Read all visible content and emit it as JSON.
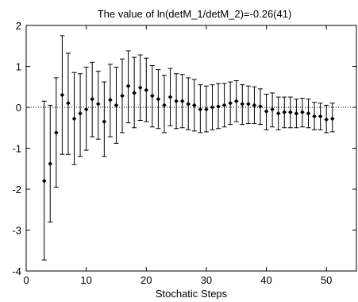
{
  "chart_data": {
    "type": "scatter",
    "title": "The value of ln(detM_1/detM_2)=-0.26(41)",
    "xlabel": "Stochatic Steps",
    "ylabel": "",
    "xlim": [
      0,
      55
    ],
    "ylim": [
      -4,
      2
    ],
    "xticks": [
      0,
      10,
      20,
      30,
      40,
      50
    ],
    "yticks": [
      -4,
      -3,
      -2,
      -1,
      0,
      1,
      2
    ],
    "reference_line": {
      "y": 0,
      "style": "dotted"
    },
    "grid": false,
    "series": [
      {
        "marker": "diamond",
        "errorbars": true,
        "points": [
          {
            "x": 3,
            "y": -1.8,
            "lo": -3.73,
            "hi": 0.15
          },
          {
            "x": 4,
            "y": -1.38,
            "lo": -2.8,
            "hi": 0.05
          },
          {
            "x": 5,
            "y": -0.62,
            "lo": -1.95,
            "hi": 0.72
          },
          {
            "x": 6,
            "y": 0.3,
            "lo": -1.15,
            "hi": 1.75
          },
          {
            "x": 7,
            "y": 0.1,
            "lo": -1.15,
            "hi": 1.32
          },
          {
            "x": 8,
            "y": -0.28,
            "lo": -1.4,
            "hi": 0.85
          },
          {
            "x": 9,
            "y": -0.15,
            "lo": -1.2,
            "hi": 0.82
          },
          {
            "x": 10,
            "y": -0.05,
            "lo": -1.05,
            "hi": 0.98
          },
          {
            "x": 11,
            "y": 0.2,
            "lo": -0.72,
            "hi": 1.1
          },
          {
            "x": 12,
            "y": 0.08,
            "lo": -0.78,
            "hi": 0.88
          },
          {
            "x": 13,
            "y": -0.35,
            "lo": -1.2,
            "hi": 0.62
          },
          {
            "x": 14,
            "y": 0.18,
            "lo": -0.72,
            "hi": 1.05
          },
          {
            "x": 15,
            "y": 0.05,
            "lo": -0.88,
            "hi": 0.98
          },
          {
            "x": 16,
            "y": 0.28,
            "lo": -0.62,
            "hi": 1.18
          },
          {
            "x": 17,
            "y": 0.52,
            "lo": -0.38,
            "hi": 1.38
          },
          {
            "x": 18,
            "y": 0.35,
            "lo": -0.5,
            "hi": 1.22
          },
          {
            "x": 19,
            "y": 0.48,
            "lo": -0.32,
            "hi": 1.28
          },
          {
            "x": 20,
            "y": 0.42,
            "lo": -0.35,
            "hi": 1.2
          },
          {
            "x": 21,
            "y": 0.28,
            "lo": -0.48,
            "hi": 1.02
          },
          {
            "x": 22,
            "y": 0.2,
            "lo": -0.52,
            "hi": 0.92
          },
          {
            "x": 23,
            "y": 0.05,
            "lo": -0.62,
            "hi": 0.78
          },
          {
            "x": 24,
            "y": 0.25,
            "lo": -0.45,
            "hi": 0.95
          },
          {
            "x": 25,
            "y": 0.15,
            "lo": -0.52,
            "hi": 0.82
          },
          {
            "x": 26,
            "y": 0.15,
            "lo": -0.5,
            "hi": 0.8
          },
          {
            "x": 27,
            "y": 0.08,
            "lo": -0.55,
            "hi": 0.72
          },
          {
            "x": 28,
            "y": 0.05,
            "lo": -0.58,
            "hi": 0.68
          },
          {
            "x": 29,
            "y": -0.05,
            "lo": -0.62,
            "hi": 0.55
          },
          {
            "x": 30,
            "y": -0.05,
            "lo": -0.6,
            "hi": 0.52
          },
          {
            "x": 31,
            "y": 0.0,
            "lo": -0.55,
            "hi": 0.55
          },
          {
            "x": 32,
            "y": 0.02,
            "lo": -0.52,
            "hi": 0.58
          },
          {
            "x": 33,
            "y": 0.05,
            "lo": -0.48,
            "hi": 0.58
          },
          {
            "x": 34,
            "y": 0.1,
            "lo": -0.42,
            "hi": 0.62
          },
          {
            "x": 35,
            "y": 0.15,
            "lo": -0.35,
            "hi": 0.65
          },
          {
            "x": 36,
            "y": 0.08,
            "lo": -0.42,
            "hi": 0.55
          },
          {
            "x": 37,
            "y": 0.08,
            "lo": -0.4,
            "hi": 0.52
          },
          {
            "x": 38,
            "y": 0.05,
            "lo": -0.4,
            "hi": 0.5
          },
          {
            "x": 39,
            "y": 0.02,
            "lo": -0.42,
            "hi": 0.45
          },
          {
            "x": 40,
            "y": -0.1,
            "lo": -0.55,
            "hi": 0.32
          },
          {
            "x": 41,
            "y": -0.05,
            "lo": -0.48,
            "hi": 0.35
          },
          {
            "x": 42,
            "y": -0.15,
            "lo": -0.55,
            "hi": 0.25
          },
          {
            "x": 43,
            "y": -0.12,
            "lo": -0.5,
            "hi": 0.25
          },
          {
            "x": 44,
            "y": -0.12,
            "lo": -0.5,
            "hi": 0.25
          },
          {
            "x": 45,
            "y": -0.15,
            "lo": -0.5,
            "hi": 0.2
          },
          {
            "x": 46,
            "y": -0.12,
            "lo": -0.48,
            "hi": 0.22
          },
          {
            "x": 47,
            "y": -0.15,
            "lo": -0.5,
            "hi": 0.2
          },
          {
            "x": 48,
            "y": -0.22,
            "lo": -0.55,
            "hi": 0.12
          },
          {
            "x": 49,
            "y": -0.22,
            "lo": -0.55,
            "hi": 0.1
          },
          {
            "x": 50,
            "y": -0.3,
            "lo": -0.62,
            "hi": 0.05
          },
          {
            "x": 51,
            "y": -0.28,
            "lo": -0.6,
            "hi": 0.1
          }
        ]
      }
    ],
    "colors": {
      "marker": "#000000",
      "axes": "#000000"
    }
  }
}
